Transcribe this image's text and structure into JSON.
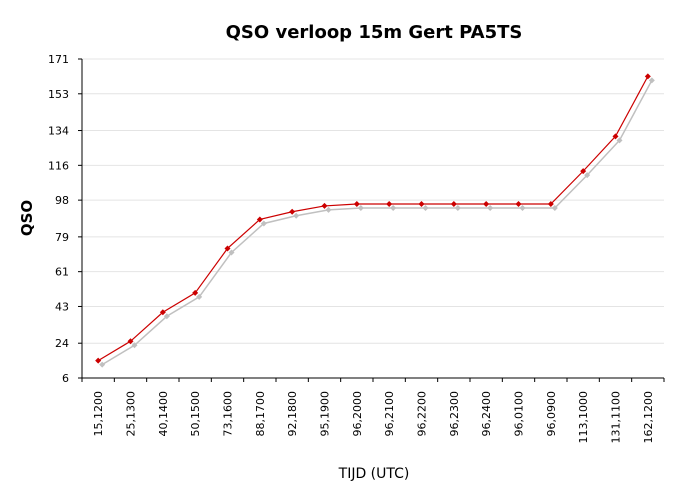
{
  "chart_data": {
    "type": "line",
    "title": "QSO verloop 15m Gert PA5TS",
    "xlabel": "TIJD (UTC)",
    "ylabel": "QSO",
    "categories": [
      "15,1200",
      "25,1300",
      "40,1400",
      "50,1500",
      "73,1600",
      "88,1700",
      "92,1800",
      "95,1900",
      "96,2000",
      "96,2100",
      "96,2200",
      "96,2300",
      "96,2400",
      "96,0100",
      "96,0900",
      "113,1000",
      "131,1100",
      "162,1200"
    ],
    "series": [
      {
        "values": [
          15,
          25,
          40,
          50,
          73,
          88,
          92,
          95,
          96,
          96,
          96,
          96,
          96,
          96,
          96,
          113,
          131,
          162
        ]
      }
    ],
    "ylim": [
      6,
      171
    ],
    "yticks": [
      6,
      24,
      43,
      61,
      79,
      98,
      116,
      134,
      153,
      171
    ],
    "grid": true,
    "line_color": "#cc0000",
    "marker_color": "#cc0000",
    "shadow_color": "#c0c0c0",
    "gridline_color": "#e4e4e4"
  }
}
